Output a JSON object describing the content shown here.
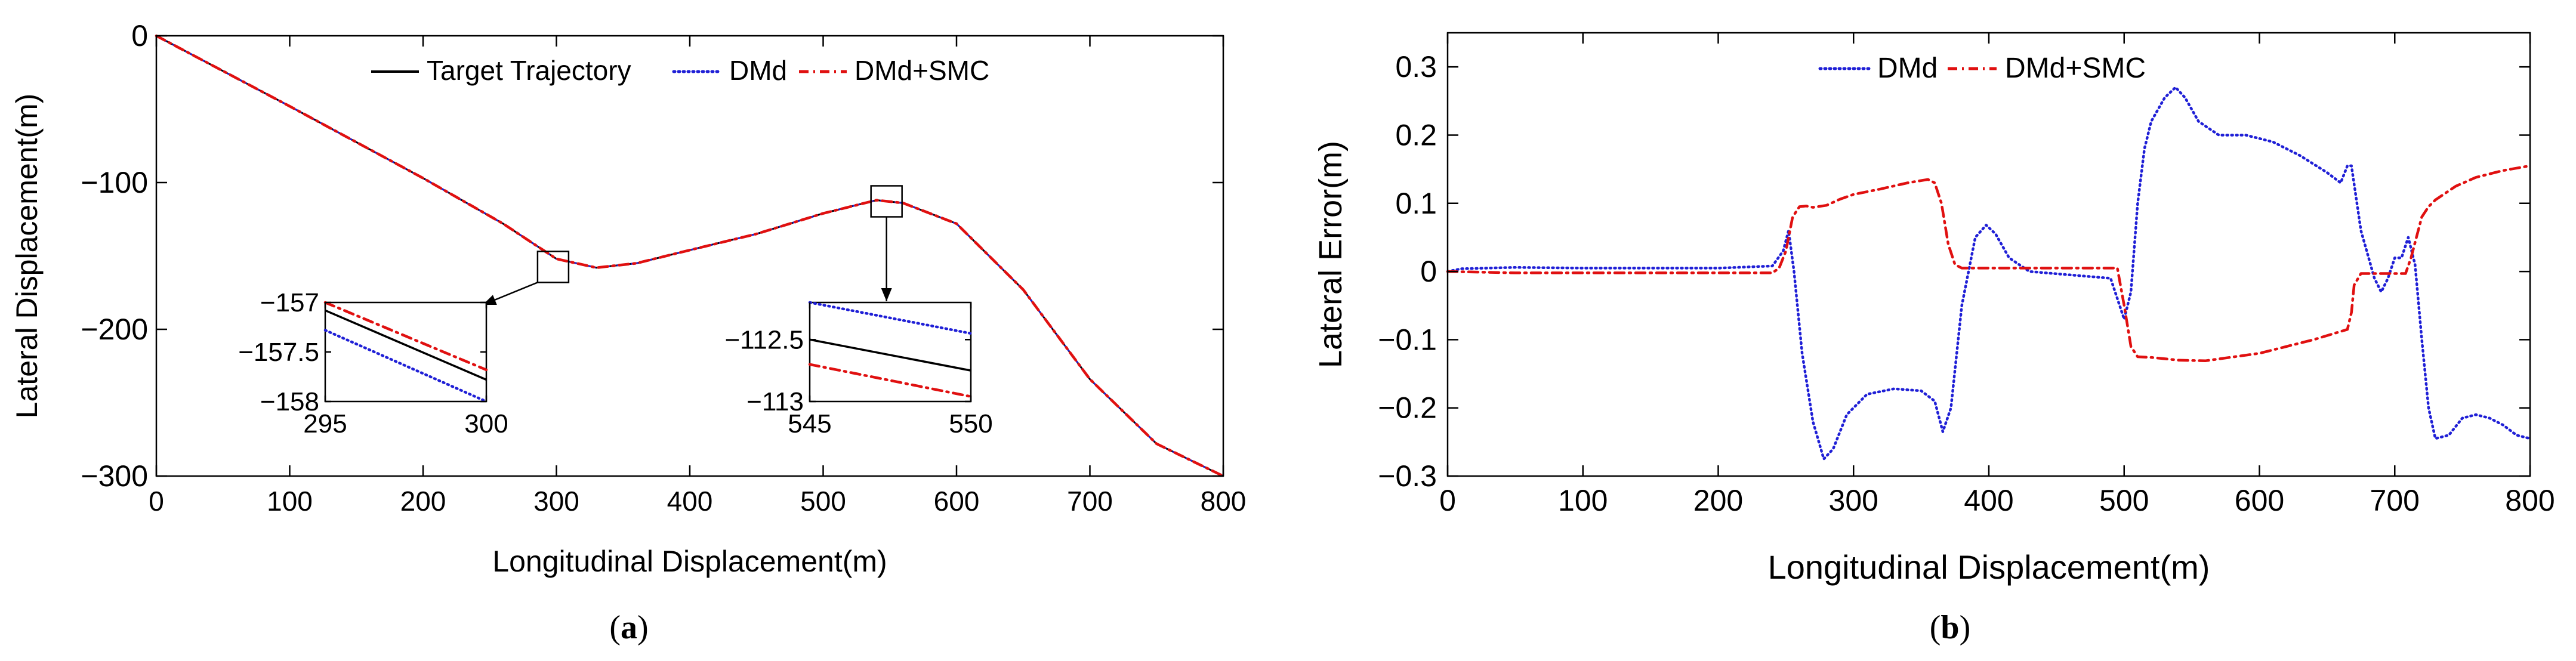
{
  "chart_data": [
    {
      "id": "a",
      "type": "line",
      "caption": "a",
      "xlabel": "Longitudinal Displacement(m)",
      "ylabel": "Lateral Displacement(m)",
      "xlim": [
        0,
        800
      ],
      "ylim": [
        -300,
        0
      ],
      "xticks": [
        0,
        100,
        200,
        300,
        400,
        500,
        600,
        700,
        800
      ],
      "xtick_labels": [
        "0",
        "100",
        "200",
        "300",
        "400",
        "500",
        "600",
        "700",
        "800"
      ],
      "yticks": [
        0,
        -100,
        -200,
        -300
      ],
      "ytick_labels": [
        "0",
        "−100",
        "−200",
        "−300"
      ],
      "legend": {
        "location": "top-center",
        "entries": [
          "Target Trajectory",
          "DMd",
          "DMd+SMC"
        ]
      },
      "series": [
        {
          "name": "Target Trajectory",
          "color": "#000000",
          "style": "solid",
          "x": [
            0,
            100,
            200,
            260,
            300,
            330,
            360,
            400,
            450,
            500,
            540,
            560,
            600,
            650,
            700,
            750,
            800
          ],
          "y": [
            0,
            -48,
            -97,
            -128,
            -152,
            -158,
            -155,
            -146,
            -135,
            -121,
            -112,
            -114,
            -128,
            -173,
            -234,
            -278,
            -300
          ]
        },
        {
          "name": "DMd",
          "color": "#1f1fd6",
          "style": "dotted",
          "x": [
            0,
            100,
            200,
            260,
            300,
            330,
            360,
            400,
            450,
            500,
            540,
            560,
            600,
            650,
            700,
            750,
            800
          ],
          "y": [
            0,
            -48,
            -97,
            -128,
            -152,
            -158,
            -155,
            -146,
            -135,
            -121,
            -112,
            -114,
            -128,
            -173,
            -234,
            -278,
            -300
          ]
        },
        {
          "name": "DMd+SMC",
          "color": "#e01010",
          "style": "dashdot",
          "x": [
            0,
            100,
            200,
            260,
            300,
            330,
            360,
            400,
            450,
            500,
            540,
            560,
            600,
            650,
            700,
            750,
            800
          ],
          "y": [
            0,
            -48,
            -97,
            -128,
            -152,
            -158,
            -155,
            -146,
            -135,
            -121,
            -112,
            -114,
            -128,
            -173,
            -234,
            -278,
            -300
          ]
        }
      ],
      "annotations": [
        {
          "type": "zoom-box",
          "at": [
            297.5,
            -157.5
          ]
        },
        {
          "type": "zoom-box",
          "at": [
            547.5,
            -112.8
          ]
        }
      ],
      "insets": [
        {
          "name": "inset-1",
          "xlim": [
            295,
            300
          ],
          "ylim": [
            -158,
            -157
          ],
          "xticks": [
            295,
            300
          ],
          "xtick_labels": [
            "295",
            "300"
          ],
          "yticks": [
            -157,
            -157.5,
            -158
          ],
          "ytick_labels": [
            "−157",
            "−157.5",
            "−158"
          ],
          "series": [
            {
              "name": "Target Trajectory",
              "x": [
                295,
                300
              ],
              "y": [
                -157.08,
                -157.78
              ]
            },
            {
              "name": "DMd",
              "x": [
                295,
                300
              ],
              "y": [
                -157.28,
                -158.0
              ]
            },
            {
              "name": "DMd+SMC",
              "x": [
                295,
                300
              ],
              "y": [
                -157.0,
                -157.68
              ]
            }
          ]
        },
        {
          "name": "inset-2",
          "xlim": [
            545,
            550
          ],
          "ylim": [
            -113,
            -112.2
          ],
          "xticks": [
            545,
            550
          ],
          "xtick_labels": [
            "545",
            "550"
          ],
          "yticks": [
            -112.5,
            -113
          ],
          "ytick_labels": [
            "−112.5",
            "−113"
          ],
          "series": [
            {
              "name": "Target Trajectory",
              "x": [
                545,
                550
              ],
              "y": [
                -112.5,
                -112.75
              ]
            },
            {
              "name": "DMd",
              "x": [
                545,
                550
              ],
              "y": [
                -112.2,
                -112.45
              ]
            },
            {
              "name": "DMd+SMC",
              "x": [
                545,
                550
              ],
              "y": [
                -112.7,
                -112.96
              ]
            }
          ]
        }
      ]
    },
    {
      "id": "b",
      "type": "line",
      "caption": "b",
      "xlabel": "Longitudinal Displacement(m)",
      "ylabel": "Lateral Error(m)",
      "xlim": [
        0,
        800
      ],
      "ylim": [
        -0.3,
        0.35
      ],
      "xticks": [
        0,
        100,
        200,
        300,
        400,
        500,
        600,
        700,
        800
      ],
      "xtick_labels": [
        "0",
        "100",
        "200",
        "300",
        "400",
        "500",
        "600",
        "700",
        "800"
      ],
      "yticks": [
        -0.3,
        -0.2,
        -0.1,
        0,
        0.1,
        0.2,
        0.3
      ],
      "ytick_labels": [
        "−0.3",
        "−0.2",
        "−0.1",
        "0",
        "0.1",
        "0.2",
        "0.3"
      ],
      "legend": {
        "location": "top-center",
        "entries": [
          "DMd",
          "DMd+SMC"
        ]
      },
      "series": [
        {
          "name": "DMd",
          "color": "#1f1fd6",
          "style": "dotted",
          "x": [
            0,
            10,
            50,
            100,
            200,
            240,
            248,
            252,
            256,
            262,
            270,
            278,
            285,
            295,
            310,
            330,
            350,
            360,
            366,
            372,
            380,
            390,
            398,
            405,
            415,
            430,
            460,
            490,
            500,
            505,
            510,
            515,
            520,
            530,
            538,
            545,
            555,
            570,
            590,
            610,
            630,
            650,
            660,
            665,
            668,
            675,
            685,
            690,
            695,
            700,
            705,
            710,
            715,
            720,
            725,
            730,
            740,
            750,
            760,
            770,
            780,
            790,
            800
          ],
          "y": [
            0,
            0.004,
            0.006,
            0.005,
            0.005,
            0.008,
            0.03,
            0.06,
            0.0,
            -0.12,
            -0.22,
            -0.275,
            -0.26,
            -0.21,
            -0.18,
            -0.172,
            -0.175,
            -0.19,
            -0.235,
            -0.2,
            -0.05,
            0.05,
            0.068,
            0.055,
            0.02,
            0.0,
            -0.005,
            -0.01,
            -0.07,
            -0.03,
            0.1,
            0.18,
            0.22,
            0.255,
            0.27,
            0.255,
            0.22,
            0.2,
            0.2,
            0.19,
            0.17,
            0.145,
            0.13,
            0.155,
            0.155,
            0.06,
            -0.01,
            -0.03,
            -0.01,
            0.02,
            0.02,
            0.05,
            0.01,
            -0.1,
            -0.2,
            -0.245,
            -0.24,
            -0.215,
            -0.21,
            -0.215,
            -0.225,
            -0.24,
            -0.245
          ]
        },
        {
          "name": "DMd+SMC",
          "color": "#e01010",
          "style": "dashdot",
          "x": [
            0,
            50,
            100,
            200,
            240,
            245,
            250,
            255,
            260,
            265,
            270,
            280,
            290,
            300,
            320,
            340,
            355,
            360,
            365,
            370,
            375,
            380,
            400,
            450,
            490,
            495,
            500,
            505,
            510,
            520,
            540,
            560,
            600,
            640,
            665,
            668,
            670,
            675,
            700,
            708,
            712,
            720,
            725,
            730,
            745,
            760,
            780,
            800
          ],
          "y": [
            0,
            -0.002,
            -0.002,
            -0.002,
            -0.002,
            0.005,
            0.03,
            0.08,
            0.095,
            0.096,
            0.094,
            0.097,
            0.106,
            0.113,
            0.121,
            0.13,
            0.135,
            0.13,
            0.1,
            0.04,
            0.01,
            0.005,
            0.005,
            0.005,
            0.005,
            0.005,
            -0.05,
            -0.11,
            -0.125,
            -0.126,
            -0.13,
            -0.131,
            -0.12,
            -0.1,
            -0.085,
            -0.06,
            -0.02,
            -0.003,
            -0.003,
            -0.003,
            0.02,
            0.08,
            0.095,
            0.105,
            0.125,
            0.138,
            0.148,
            0.155
          ]
        }
      ]
    }
  ]
}
